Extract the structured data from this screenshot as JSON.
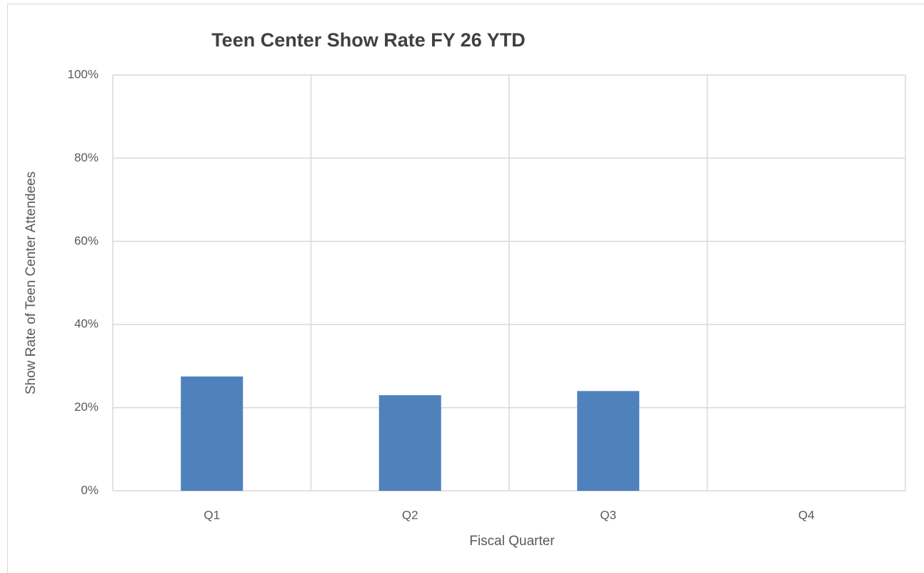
{
  "chart_data": {
    "type": "bar",
    "title": "Teen Center Show Rate FY 26 YTD",
    "x_label": "Fiscal Quarter",
    "y_label": "Show Rate of Teen Center Attendees",
    "categories": [
      "Q1",
      "Q2",
      "Q3",
      "Q4"
    ],
    "values": [
      27.5,
      23,
      24,
      null
    ],
    "color": "#4f81bd",
    "ylim": [
      0,
      100
    ],
    "yticks": [
      {
        "value": 0,
        "label": "0%"
      },
      {
        "value": 20,
        "label": "20%"
      },
      {
        "value": 40,
        "label": "40%"
      },
      {
        "value": 60,
        "label": "60%"
      },
      {
        "value": 80,
        "label": "80%"
      },
      {
        "value": 100,
        "label": "100%"
      }
    ],
    "grid": true
  }
}
